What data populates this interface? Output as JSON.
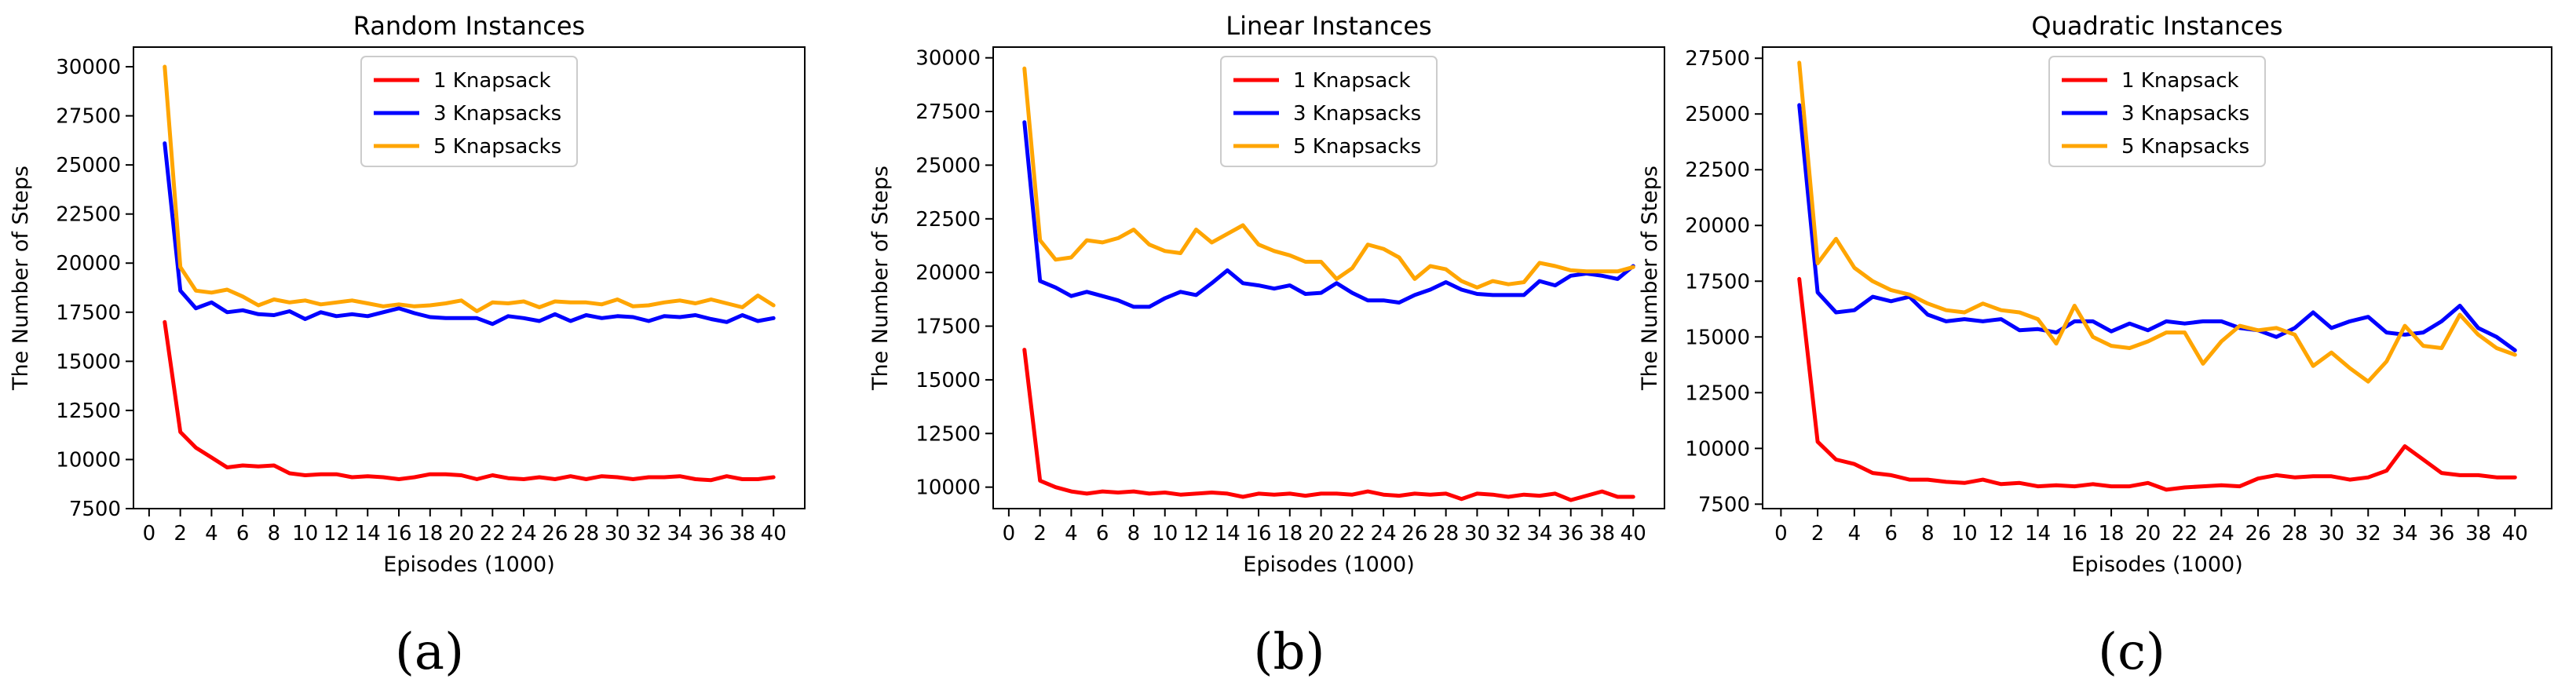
{
  "chart_data": [
    {
      "type": "line",
      "title": "Random Instances",
      "xlabel": "Episodes (1000)",
      "ylabel": "The Number of Steps",
      "xlim": [
        -1,
        42
      ],
      "ylim": [
        7500,
        31000
      ],
      "xticks": [
        0,
        2,
        4,
        6,
        8,
        10,
        12,
        14,
        16,
        18,
        20,
        22,
        24,
        26,
        28,
        30,
        32,
        34,
        36,
        38,
        40
      ],
      "yticks": [
        7500,
        10000,
        12500,
        15000,
        17500,
        20000,
        22500,
        25000,
        27500,
        30000
      ],
      "legend_position": "top-center",
      "panel_label": "(a)",
      "x": [
        1,
        2,
        3,
        4,
        5,
        6,
        7,
        8,
        9,
        10,
        11,
        12,
        13,
        14,
        15,
        16,
        17,
        18,
        19,
        20,
        21,
        22,
        23,
        24,
        25,
        26,
        27,
        28,
        29,
        30,
        31,
        32,
        33,
        34,
        35,
        36,
        37,
        38,
        39,
        40
      ],
      "series": [
        {
          "name": "1 Knapsack",
          "color": "#ff0000",
          "values": [
            17000,
            11400,
            10600,
            10100,
            9600,
            9700,
            9650,
            9700,
            9300,
            9200,
            9250,
            9250,
            9100,
            9150,
            9100,
            9000,
            9100,
            9250,
            9250,
            9200,
            9000,
            9200,
            9050,
            9000,
            9100,
            9000,
            9150,
            9000,
            9150,
            9100,
            9000,
            9100,
            9100,
            9150,
            9000,
            8950,
            9150,
            9000,
            9000,
            9100
          ]
        },
        {
          "name": "3 Knapsacks",
          "color": "#0000ff",
          "values": [
            26100,
            18600,
            17700,
            18000,
            17500,
            17600,
            17400,
            17350,
            17550,
            17150,
            17500,
            17300,
            17400,
            17300,
            17500,
            17700,
            17450,
            17250,
            17200,
            17200,
            17200,
            16900,
            17300,
            17200,
            17050,
            17400,
            17050,
            17350,
            17200,
            17300,
            17250,
            17050,
            17300,
            17250,
            17350,
            17150,
            17000,
            17350,
            17050,
            17200
          ]
        },
        {
          "name": "5 Knapsacks",
          "color": "#ffa500",
          "values": [
            30000,
            19800,
            18600,
            18500,
            18650,
            18300,
            17850,
            18150,
            18000,
            18100,
            17900,
            18000,
            18100,
            17950,
            17800,
            17900,
            17800,
            17850,
            17950,
            18100,
            17550,
            18000,
            17950,
            18050,
            17750,
            18050,
            18000,
            18000,
            17900,
            18150,
            17800,
            17850,
            18000,
            18100,
            17950,
            18150,
            17950,
            17750,
            18350,
            17850
          ]
        }
      ]
    },
    {
      "type": "line",
      "title": "Linear Instances",
      "xlabel": "Episodes (1000)",
      "ylabel": "The Number of Steps",
      "xlim": [
        -1,
        42
      ],
      "ylim": [
        9000,
        30500
      ],
      "xticks": [
        0,
        2,
        4,
        6,
        8,
        10,
        12,
        14,
        16,
        18,
        20,
        22,
        24,
        26,
        28,
        30,
        32,
        34,
        36,
        38,
        40
      ],
      "yticks": [
        10000,
        12500,
        15000,
        17500,
        20000,
        22500,
        25000,
        27500,
        30000
      ],
      "legend_position": "top-center",
      "panel_label": "(b)",
      "x": [
        1,
        2,
        3,
        4,
        5,
        6,
        7,
        8,
        9,
        10,
        11,
        12,
        13,
        14,
        15,
        16,
        17,
        18,
        19,
        20,
        21,
        22,
        23,
        24,
        25,
        26,
        27,
        28,
        29,
        30,
        31,
        32,
        33,
        34,
        35,
        36,
        37,
        38,
        39,
        40
      ],
      "series": [
        {
          "name": "1 Knapsack",
          "color": "#ff0000",
          "values": [
            16400,
            10300,
            10000,
            9800,
            9700,
            9800,
            9750,
            9800,
            9700,
            9750,
            9650,
            9700,
            9750,
            9700,
            9550,
            9700,
            9650,
            9700,
            9600,
            9700,
            9700,
            9650,
            9800,
            9650,
            9600,
            9700,
            9650,
            9700,
            9450,
            9700,
            9650,
            9550,
            9650,
            9600,
            9700,
            9400,
            9600,
            9800,
            9550,
            9550
          ]
        },
        {
          "name": "3 Knapsacks",
          "color": "#0000ff",
          "values": [
            27000,
            19600,
            19300,
            18900,
            19100,
            18900,
            18700,
            18400,
            18400,
            18800,
            19100,
            18950,
            19500,
            20100,
            19500,
            19400,
            19250,
            19400,
            19000,
            19050,
            19500,
            19050,
            18700,
            18700,
            18600,
            18950,
            19200,
            19550,
            19200,
            19000,
            18950,
            18950,
            18950,
            19600,
            19400,
            19850,
            19950,
            19850,
            19700,
            20300
          ]
        },
        {
          "name": "5 Knapsacks",
          "color": "#ffa500",
          "values": [
            29500,
            21500,
            20600,
            20700,
            21500,
            21400,
            21600,
            22000,
            21300,
            21000,
            20900,
            22000,
            21400,
            21800,
            22200,
            21300,
            21000,
            20800,
            20500,
            20500,
            19700,
            20200,
            21300,
            21100,
            20700,
            19700,
            20300,
            20150,
            19600,
            19300,
            19600,
            19450,
            19550,
            20450,
            20300,
            20100,
            20050,
            20050,
            20050,
            20250
          ]
        }
      ]
    },
    {
      "type": "line",
      "title": "Quadratic Instances",
      "xlabel": "Episodes (1000)",
      "ylabel": "The Number of Steps",
      "xlim": [
        -1,
        42
      ],
      "ylim": [
        7300,
        28000
      ],
      "xticks": [
        0,
        2,
        4,
        6,
        8,
        10,
        12,
        14,
        16,
        18,
        20,
        22,
        24,
        26,
        28,
        30,
        32,
        34,
        36,
        38,
        40
      ],
      "yticks": [
        7500,
        10000,
        12500,
        15000,
        17500,
        20000,
        22500,
        25000,
        27500
      ],
      "legend_position": "top-center",
      "panel_label": "(c)",
      "x": [
        1,
        2,
        3,
        4,
        5,
        6,
        7,
        8,
        9,
        10,
        11,
        12,
        13,
        14,
        15,
        16,
        17,
        18,
        19,
        20,
        21,
        22,
        23,
        24,
        25,
        26,
        27,
        28,
        29,
        30,
        31,
        32,
        33,
        34,
        35,
        36,
        37,
        38,
        39,
        40
      ],
      "series": [
        {
          "name": "1 Knapsack",
          "color": "#ff0000",
          "values": [
            17600,
            10300,
            9500,
            9300,
            8900,
            8800,
            8600,
            8600,
            8500,
            8450,
            8600,
            8400,
            8450,
            8300,
            8350,
            8300,
            8400,
            8300,
            8300,
            8450,
            8150,
            8250,
            8300,
            8350,
            8300,
            8650,
            8800,
            8700,
            8750,
            8750,
            8600,
            8700,
            9000,
            10100,
            9500,
            8900,
            8800,
            8800,
            8700,
            8700
          ]
        },
        {
          "name": "3 Knapsacks",
          "color": "#0000ff",
          "values": [
            25400,
            17000,
            16100,
            16200,
            16800,
            16600,
            16800,
            16000,
            15700,
            15800,
            15700,
            15800,
            15300,
            15350,
            15200,
            15700,
            15700,
            15250,
            15600,
            15300,
            15700,
            15600,
            15700,
            15700,
            15400,
            15300,
            15000,
            15400,
            16100,
            15400,
            15700,
            15900,
            15200,
            15100,
            15200,
            15700,
            16400,
            15400,
            15000,
            14400
          ]
        },
        {
          "name": "5 Knapsacks",
          "color": "#ffa500",
          "values": [
            27300,
            18300,
            19400,
            18100,
            17500,
            17100,
            16900,
            16500,
            16200,
            16100,
            16500,
            16200,
            16100,
            15800,
            14700,
            16400,
            15000,
            14600,
            14500,
            14800,
            15200,
            15200,
            13800,
            14800,
            15500,
            15300,
            15400,
            15100,
            13700,
            14300,
            13600,
            13000,
            13900,
            15500,
            14600,
            14500,
            16000,
            15100,
            14500,
            14200
          ]
        }
      ]
    }
  ]
}
